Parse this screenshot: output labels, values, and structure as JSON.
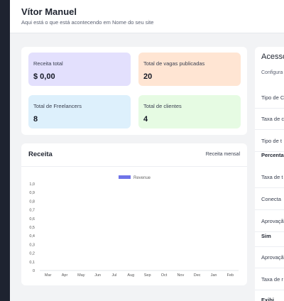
{
  "header": {
    "title": "Vítor Manuel",
    "subtitle": "Aqui está o que está acontecendo em Nome do seu site"
  },
  "stats": [
    {
      "label": "Receita total",
      "value": "$ 0,00",
      "color": "#e3e0fd"
    },
    {
      "label": "Total de vagas publicadas",
      "value": "20",
      "color": "#ffe5d3"
    },
    {
      "label": "Total de Freelancers",
      "value": "8",
      "color": "#ddf0fc"
    },
    {
      "label": "Total de clientes",
      "value": "4",
      "color": "#e6fbe3"
    }
  ],
  "revenue_panel": {
    "title": "Receita",
    "link_label": "Receita mensal"
  },
  "chart_data": {
    "type": "bar",
    "categories": [
      "Mar",
      "Apr",
      "May",
      "Jun",
      "Jul",
      "Aug",
      "Sep",
      "Oct",
      "Nov",
      "Dec",
      "Jan",
      "Feb"
    ],
    "series": [
      {
        "name": "Revenue",
        "values": [
          0,
          0,
          0,
          0,
          0,
          0,
          0,
          0,
          0,
          0,
          0,
          0
        ],
        "color": "#6f73e8"
      }
    ],
    "yticks": [
      "0",
      "0,1",
      "0,2",
      "0,3",
      "0,4",
      "0,5",
      "0,6",
      "0,7",
      "0,8",
      "0,9",
      "1,0"
    ],
    "ylim": [
      0,
      1
    ],
    "legend_position": "top-center",
    "grid": false
  },
  "access_panel": {
    "title": "Acesso",
    "description": "Configura superadm",
    "rows": [
      {
        "label": "Tipo de C",
        "bold": false
      },
      {
        "label": "Taxa de c",
        "bold": false
      },
      {
        "label": "Tipo de t",
        "bold": false
      },
      {
        "label": "Percenta",
        "bold": true
      },
      {
        "label": "Taxa de t",
        "bold": false
      },
      {
        "label": "Conecta",
        "bold": false
      },
      {
        "label": "Aprovaçã",
        "bold": false
      },
      {
        "label": "Sim",
        "bold": true
      },
      {
        "label": "Aprovaçã",
        "bold": false
      },
      {
        "label": "Taxa de r",
        "bold": false
      },
      {
        "label": "Exibi",
        "bold": true
      }
    ]
  }
}
